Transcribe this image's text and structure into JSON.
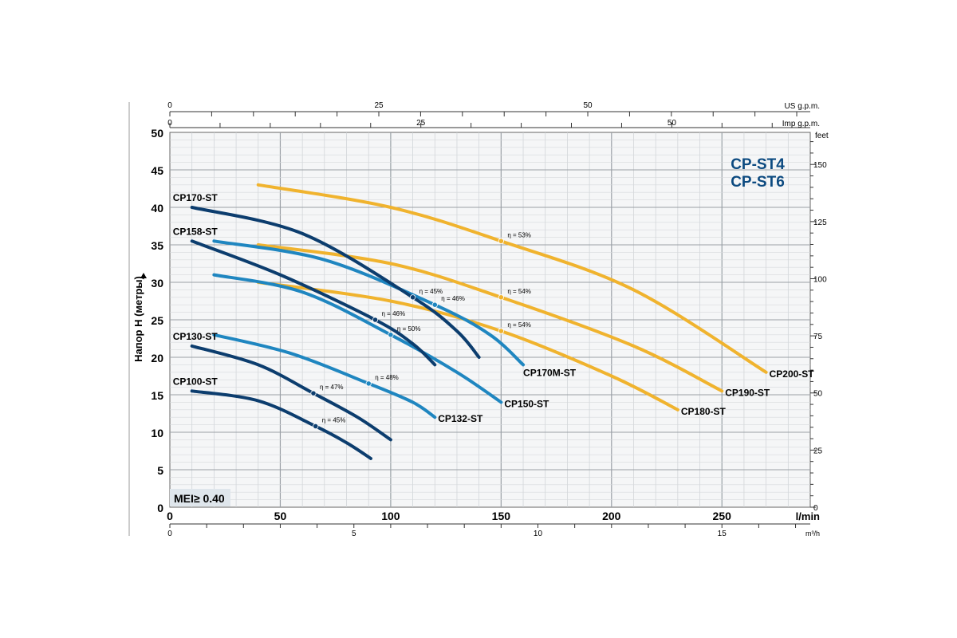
{
  "chart_data": {
    "type": "line",
    "title_lines": [
      "CP-ST4",
      "CP-ST6"
    ],
    "ylabel": "Напор H (метры)",
    "x_unit_bottom": "l/min",
    "x_unit_m3h": "m³/h",
    "x_unit_us": "US g.p.m.",
    "x_unit_imp": "Imp g.p.m.",
    "y_unit_right": "feet",
    "badge": "MEI≥ 0.40",
    "xlim": [
      0,
      290
    ],
    "ylim": [
      0,
      50
    ],
    "grid": true,
    "x_ticks_lmin": [
      "0",
      "50",
      "100",
      "150",
      "200",
      "250"
    ],
    "y_ticks_m": [
      "0",
      "5",
      "10",
      "15",
      "20",
      "25",
      "30",
      "35",
      "40",
      "45",
      "50"
    ],
    "m3h_ticks": [
      "0",
      "5",
      "10",
      "15"
    ],
    "us_gpm_ticks": [
      "0",
      "25",
      "50"
    ],
    "imp_gpm_ticks": [
      "0",
      "25",
      "50"
    ],
    "feet_ticks": [
      "0",
      "25",
      "50",
      "75",
      "100",
      "125",
      "150"
    ],
    "colors": {
      "dark_blue": "#0c3d6e",
      "light_blue": "#1f86c0",
      "orange": "#f0b32e",
      "title": "#0c4a80",
      "grid": "#c8ccd0",
      "badge_bg": "#dfe6ec"
    },
    "series": [
      {
        "name": "CP100-ST",
        "color": "dark_blue",
        "x": [
          10,
          40,
          66,
          80,
          91
        ],
        "y": [
          15.5,
          14.2,
          10.8,
          8.6,
          6.5
        ],
        "label_pos": "start",
        "eff": {
          "label": "η = 45%",
          "x": 66,
          "y": 10.8
        }
      },
      {
        "name": "CP130-ST",
        "color": "dark_blue",
        "x": [
          10,
          40,
          65,
          85,
          100
        ],
        "y": [
          21.5,
          19.0,
          15.2,
          12.0,
          9.0
        ],
        "label_pos": "start",
        "eff": {
          "label": "η = 47%",
          "x": 65,
          "y": 15.2
        }
      },
      {
        "name": "CP132-ST",
        "color": "light_blue",
        "x": [
          20,
          55,
          90,
          110,
          120
        ],
        "y": [
          23.0,
          20.5,
          16.5,
          14.0,
          12.0
        ],
        "label_pos": "end",
        "eff": {
          "label": "η = 48%",
          "x": 90,
          "y": 16.5
        }
      },
      {
        "name": "CP150-ST",
        "color": "light_blue",
        "x": [
          20,
          60,
          100,
          130,
          150
        ],
        "y": [
          31.0,
          28.7,
          23.0,
          18.0,
          14.0
        ],
        "label_pos": "end",
        "eff": {
          "label": "η = 50%",
          "x": 100,
          "y": 23.0
        }
      },
      {
        "name": "CP158-ST",
        "color": "dark_blue",
        "x": [
          10,
          50,
          93,
          110,
          120
        ],
        "y": [
          35.5,
          31.0,
          25.0,
          21.8,
          19.0
        ],
        "label_pos": "start",
        "eff": {
          "label": "η = 46%",
          "x": 93,
          "y": 25.0
        }
      },
      {
        "name": "CP170-ST",
        "color": "dark_blue",
        "x": [
          10,
          60,
          110,
          130,
          140
        ],
        "y": [
          40.0,
          36.5,
          28.0,
          23.5,
          20.0
        ],
        "label_pos": "start",
        "eff": {
          "label": "η = 45%",
          "x": 110,
          "y": 28.0
        }
      },
      {
        "name": "CP170M-ST",
        "color": "light_blue",
        "x": [
          20,
          70,
          120,
          145,
          160
        ],
        "y": [
          35.5,
          33.0,
          27.0,
          23.0,
          19.0
        ],
        "label_pos": "end",
        "eff": {
          "label": "η = 46%",
          "x": 120,
          "y": 27.0
        }
      },
      {
        "name": "CP180-ST",
        "color": "orange",
        "x": [
          40,
          100,
          150,
          200,
          230
        ],
        "y": [
          30.0,
          27.5,
          23.5,
          17.5,
          13.0
        ],
        "label_pos": "end",
        "eff": {
          "label": "η = 54%",
          "x": 150,
          "y": 23.5
        }
      },
      {
        "name": "CP190-ST",
        "color": "orange",
        "x": [
          40,
          100,
          150,
          210,
          250
        ],
        "y": [
          35.0,
          32.5,
          28.0,
          21.5,
          15.5
        ],
        "label_pos": "end",
        "eff": {
          "label": "η = 54%",
          "x": 150,
          "y": 28.0
        }
      },
      {
        "name": "CP200-ST",
        "color": "orange",
        "x": [
          40,
          100,
          150,
          210,
          270
        ],
        "y": [
          43.0,
          40.0,
          35.5,
          29.0,
          18.0
        ],
        "label_pos": "end",
        "eff": {
          "label": "η = 53%",
          "x": 150,
          "y": 35.5
        }
      }
    ]
  }
}
